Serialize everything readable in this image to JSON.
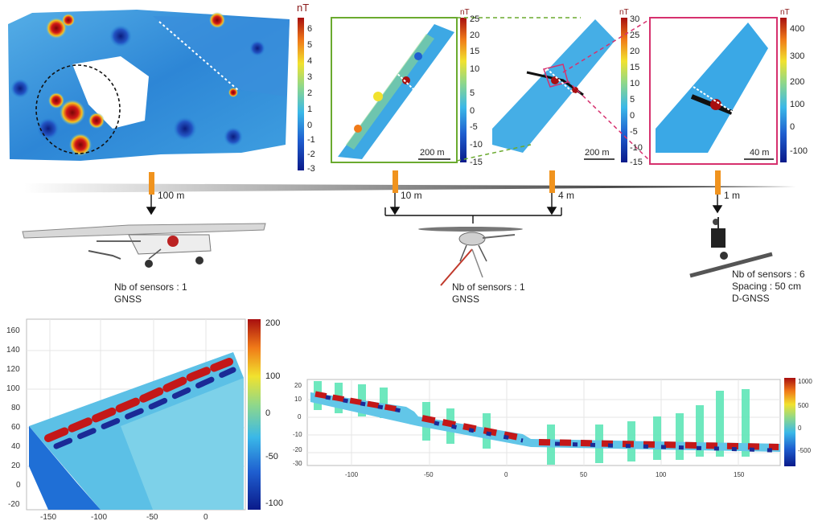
{
  "unit_label": "nT",
  "panels": [
    {
      "colorbar_ticks": [
        "6",
        "5",
        "4",
        "3",
        "2",
        "1",
        "0",
        "-1",
        "-2",
        "-3"
      ]
    },
    {
      "colorbar_ticks": [
        "25",
        "20",
        "15",
        "10",
        "5",
        "0",
        "-5",
        "-10",
        "-15"
      ],
      "scale_bar": "200 m"
    },
    {
      "colorbar_ticks": [
        "30",
        "25",
        "20",
        "15",
        "10",
        "5",
        "0",
        "-5",
        "-10",
        "-15"
      ],
      "scale_bar": "200 m"
    },
    {
      "colorbar_ticks": [
        "400",
        "300",
        "200",
        "100",
        "0",
        "-100"
      ],
      "scale_bar": "40 m"
    }
  ],
  "altitudes": [
    "100 m",
    "10 m",
    "4 m",
    "1 m"
  ],
  "platforms": [
    {
      "name": "ultralight-aircraft",
      "sensors": "Nb of sensors : 1",
      "extra": "GNSS"
    },
    {
      "name": "drone-helicopter",
      "sensors": "Nb of sensors : 1",
      "extra": "GNSS"
    },
    {
      "name": "ground-cart",
      "sensors": "Nb of sensors : 6",
      "spacing": "Spacing : 50 cm",
      "extra": "D-GNSS"
    }
  ],
  "bottom_left": {
    "yticks": [
      "160",
      "140",
      "120",
      "100",
      "80",
      "60",
      "40",
      "20",
      "0",
      "-20"
    ],
    "xticks": [
      "-150",
      "-100",
      "-50",
      "0"
    ],
    "colorbar_ticks": [
      "200",
      "100",
      "0",
      "-50",
      "-100"
    ]
  },
  "bottom_right": {
    "yticks": [
      "20",
      "10",
      "0",
      "-10",
      "-20",
      "-30"
    ],
    "xticks": [
      "-100",
      "-50",
      "0",
      "50",
      "100",
      "150"
    ],
    "colorbar_ticks": [
      "1000",
      "500",
      "0",
      "-500"
    ]
  },
  "colors": {
    "accent_orange": "#f0931e",
    "green_frame": "#6aaa2f",
    "magenta_frame": "#d6316e"
  }
}
